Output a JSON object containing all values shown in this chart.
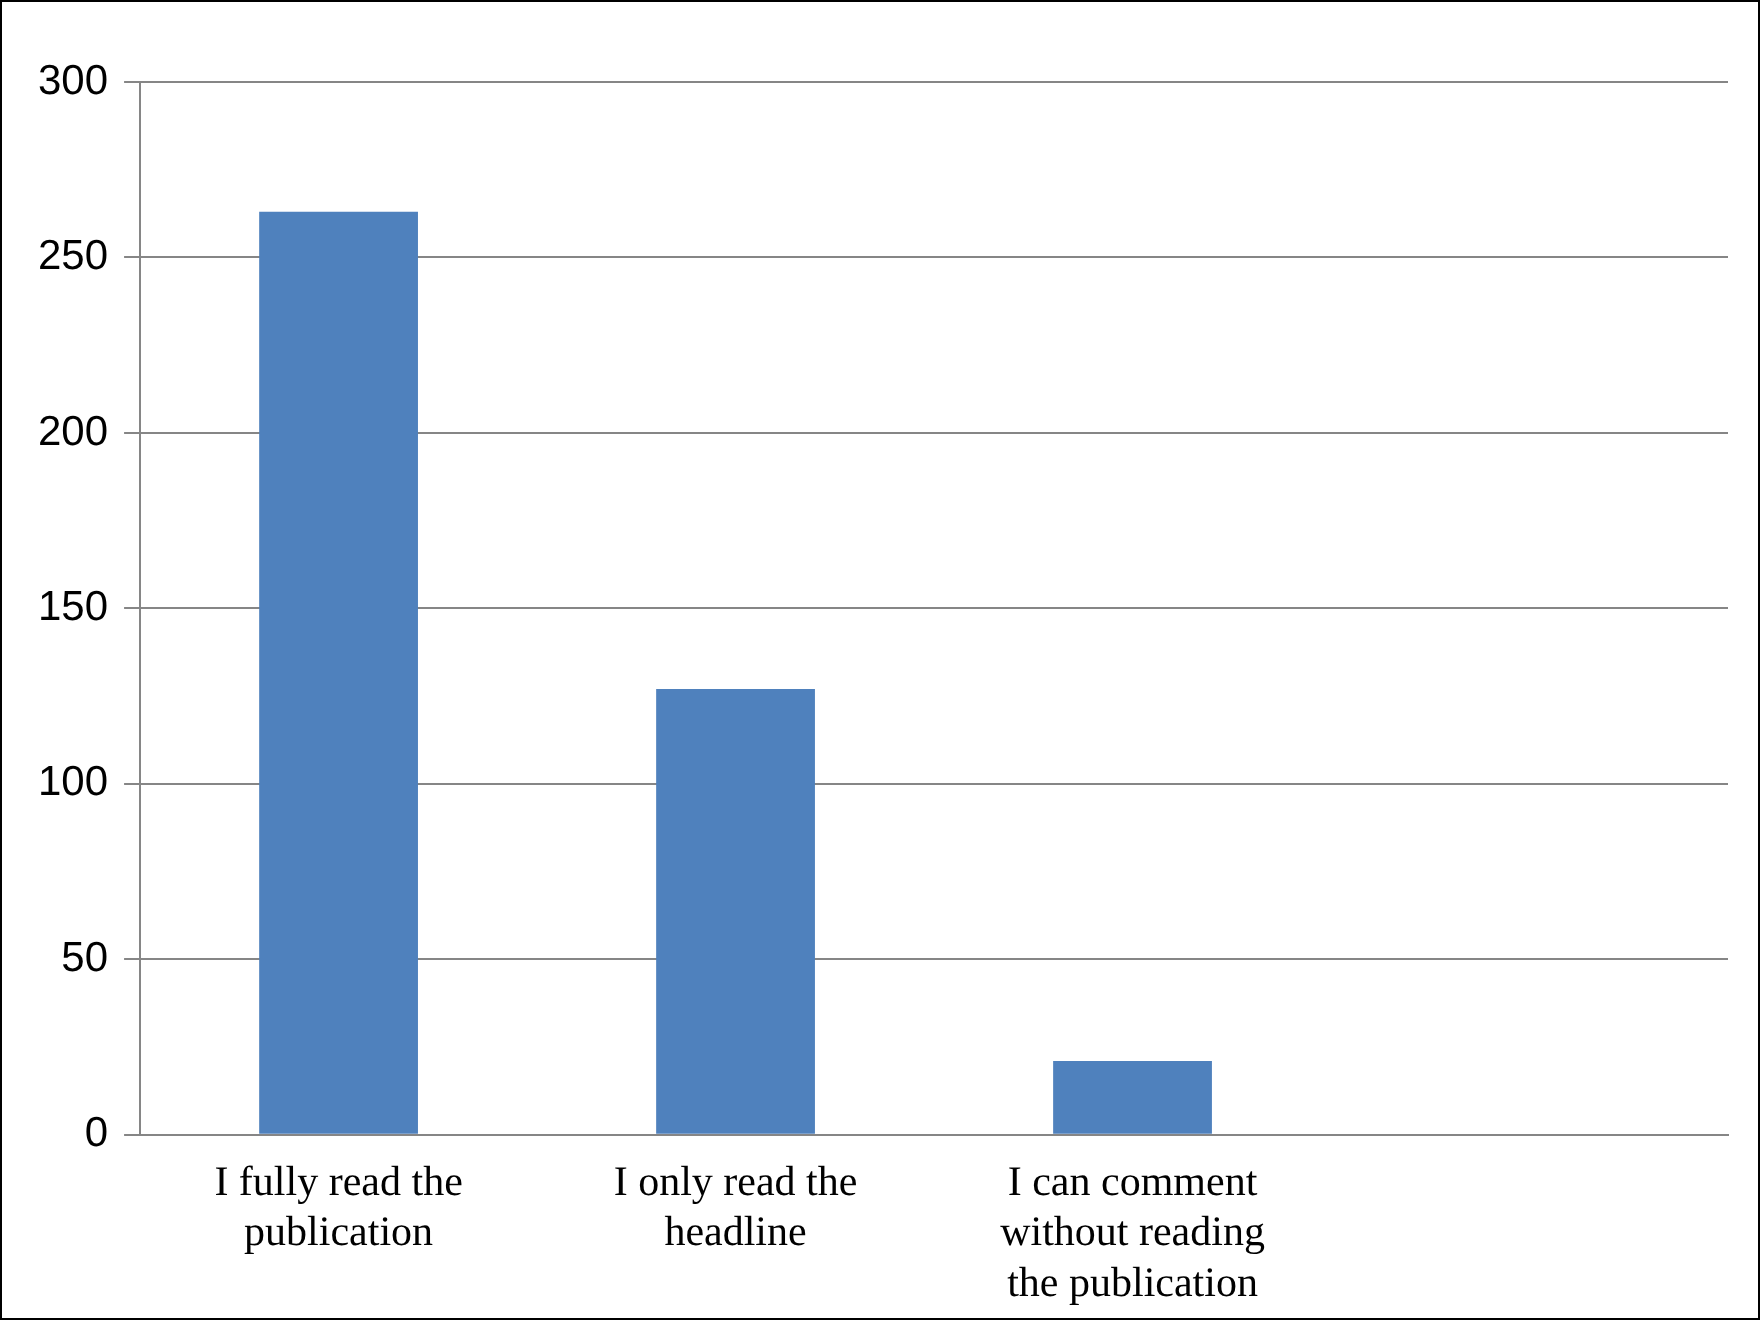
{
  "chart_data": {
    "type": "bar",
    "categories": [
      "I fully read the publication",
      "I only read the headline",
      "I can comment without reading the publication",
      null
    ],
    "values": [
      263,
      127,
      21,
      null
    ],
    "color": "#4f81bd",
    "ylim": [
      0,
      300
    ],
    "yticks": [
      0,
      50,
      100,
      150,
      200,
      250,
      300
    ],
    "grid": "y",
    "legend": false
  }
}
